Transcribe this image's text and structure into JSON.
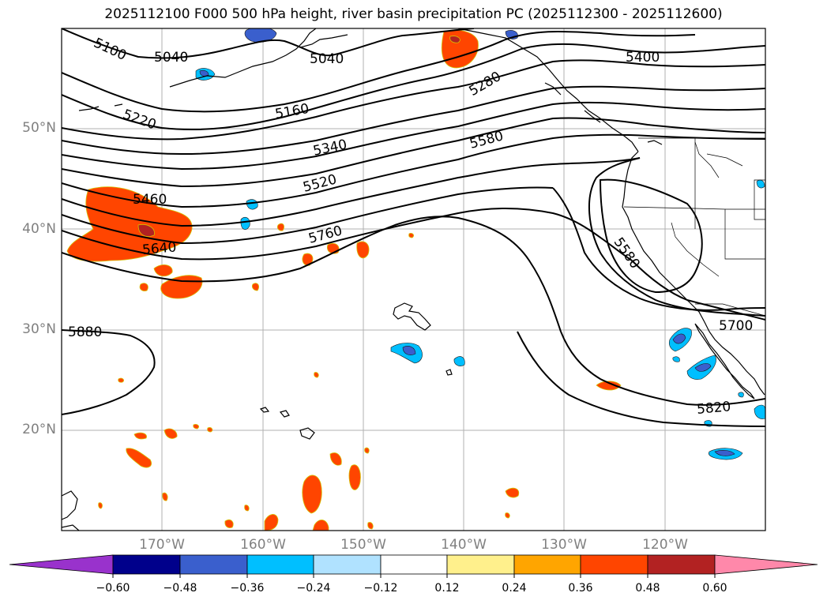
{
  "title": "2025112100 F000 500 hPa height, river basin precipitation PC (2025112300 - 2025112600)",
  "map": {
    "lat_labels": [
      "50°N",
      "40°N",
      "30°N",
      "20°N"
    ],
    "lon_labels": [
      "170°W",
      "160°W",
      "150°W",
      "140°W",
      "130°W",
      "120°W"
    ],
    "contour_labels": [
      "5100",
      "5040",
      "5040",
      "5400",
      "5280",
      "5160",
      "5220",
      "5340",
      "5580",
      "5520",
      "5460",
      "5760",
      "5640",
      "5580",
      "5880",
      "5700",
      "5820"
    ],
    "contour_color": "#000000",
    "gridline_color": "#b0b0b0"
  },
  "colorbar": {
    "ticks": [
      "−0.60",
      "−0.48",
      "−0.36",
      "−0.24",
      "−0.12",
      "0.12",
      "0.24",
      "0.36",
      "0.48",
      "0.60"
    ],
    "colors": [
      "#9932cc",
      "#00008b",
      "#3a5fcd",
      "#00bfff",
      "#b0e2ff",
      "#ffffff",
      "#fff08c",
      "#ffa500",
      "#ff4500",
      "#b22222",
      "#ff88aa"
    ]
  },
  "colors": {
    "negative_dark": "#3a5fcd",
    "negative_mid": "#00bfff",
    "negative_light": "#b0e2ff",
    "positive_light": "#fff08c",
    "positive_mid": "#ffa500",
    "positive_strong": "#ff4500",
    "positive_dark": "#b22222"
  }
}
